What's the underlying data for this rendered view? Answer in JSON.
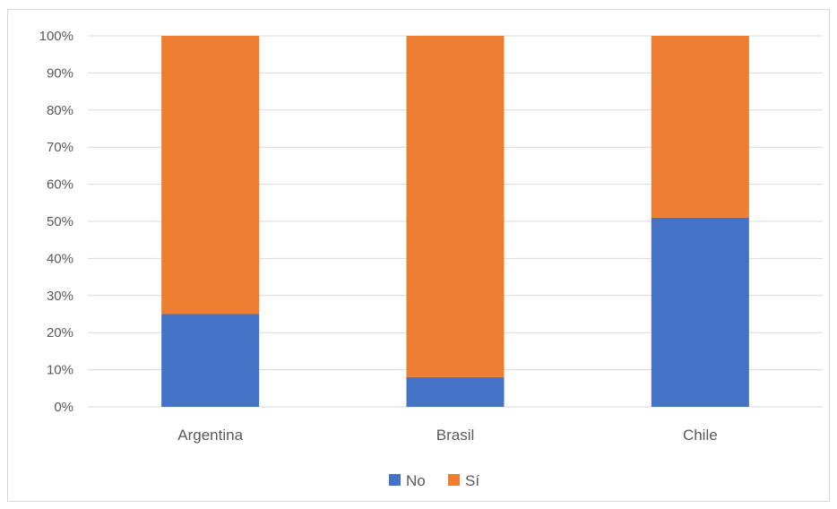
{
  "chart_data": {
    "type": "bar",
    "stacked": "percent",
    "categories": [
      "Argentina",
      "Brasil",
      "Chile"
    ],
    "series": [
      {
        "name": "No",
        "color": "#4472C4",
        "values": [
          25,
          8,
          51
        ]
      },
      {
        "name": "Sí",
        "color": "#ED7D31",
        "values": [
          75,
          92,
          49
        ]
      }
    ],
    "ylim": [
      0,
      100
    ],
    "yticks": [
      "0%",
      "10%",
      "20%",
      "30%",
      "40%",
      "50%",
      "60%",
      "70%",
      "80%",
      "90%",
      "100%"
    ],
    "grid": true,
    "legend_position": "bottom"
  }
}
